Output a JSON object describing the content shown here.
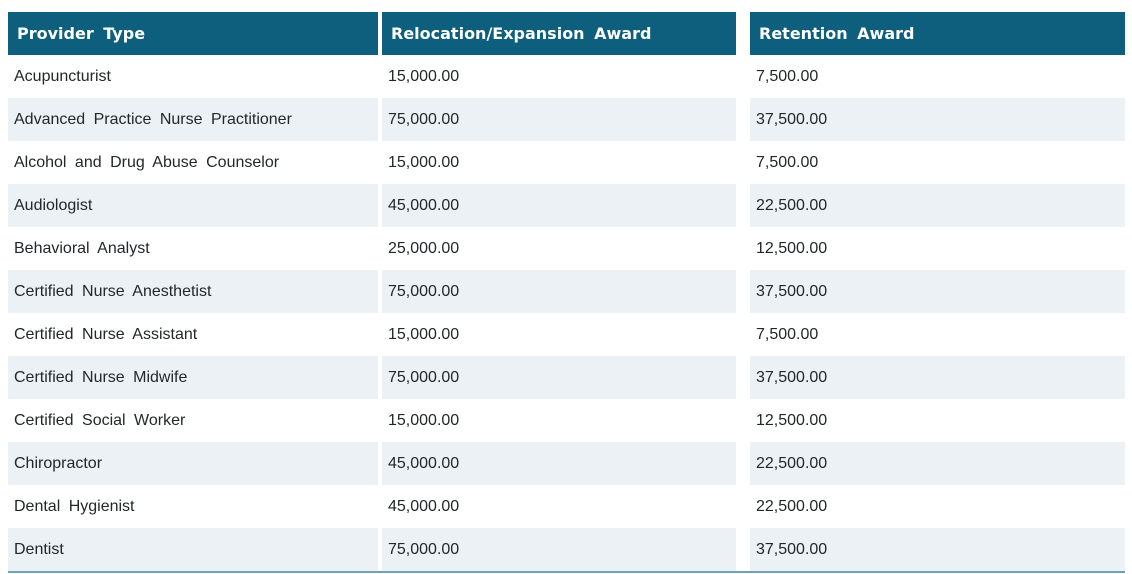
{
  "colors": {
    "header_bg": "#0d5f7d",
    "stripe_bg": "#ebf1f5",
    "body_text": "#23272a",
    "bottom_border": "#6ba3bd"
  },
  "chart_data": {
    "type": "table",
    "columns": [
      "Provider Type",
      "Relocation/Expansion Award",
      "Retention Award"
    ],
    "rows": [
      [
        "Acupuncturist",
        "15,000.00",
        "7,500.00"
      ],
      [
        "Advanced Practice Nurse Practitioner",
        "75,000.00",
        "37,500.00"
      ],
      [
        "Alcohol and Drug Abuse Counselor",
        "15,000.00",
        "7,500.00"
      ],
      [
        "Audiologist",
        "45,000.00",
        "22,500.00"
      ],
      [
        "Behavioral Analyst",
        "25,000.00",
        "12,500.00"
      ],
      [
        "Certified Nurse Anesthetist",
        "75,000.00",
        "37,500.00"
      ],
      [
        "Certified Nurse Assistant",
        "15,000.00",
        "7,500.00"
      ],
      [
        "Certified Nurse Midwife",
        "75,000.00",
        "37,500.00"
      ],
      [
        "Certified Social Worker",
        "15,000.00",
        "12,500.00"
      ],
      [
        "Chiropractor",
        "45,000.00",
        "22,500.00"
      ],
      [
        "Dental Hygienist",
        "45,000.00",
        "22,500.00"
      ],
      [
        "Dentist",
        "75,000.00",
        "37,500.00"
      ]
    ]
  }
}
